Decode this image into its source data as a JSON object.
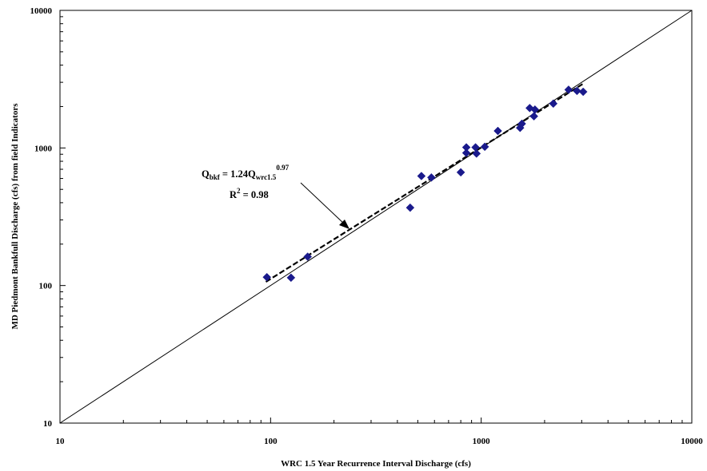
{
  "chart_data": {
    "type": "scatter",
    "title": "",
    "xlabel": "WRC 1.5 Year Recurrence Interval Discharge (cfs)",
    "ylabel": "MD Piedmont Bankfull Discharge (cfs) from field Indicators",
    "x_scale": "log",
    "y_scale": "log",
    "xlim": [
      10,
      10000
    ],
    "ylim": [
      10,
      10000
    ],
    "x_ticks": [
      "10",
      "100",
      "1000",
      "10000"
    ],
    "y_ticks": [
      "10",
      "100",
      "1000",
      "10000"
    ],
    "grid": false,
    "legend": "none",
    "marker_color": "#1a1a8c",
    "series": [
      {
        "marker": "diamond",
        "points": [
          [
            96,
            115
          ],
          [
            125,
            114
          ],
          [
            150,
            162
          ],
          [
            460,
            368
          ],
          [
            520,
            625
          ],
          [
            580,
            610
          ],
          [
            800,
            665
          ],
          [
            850,
            1010
          ],
          [
            850,
            920
          ],
          [
            940,
            1010
          ],
          [
            950,
            910
          ],
          [
            1040,
            1020
          ],
          [
            1200,
            1330
          ],
          [
            1530,
            1400
          ],
          [
            1560,
            1500
          ],
          [
            1700,
            1950
          ],
          [
            1780,
            1700
          ],
          [
            1800,
            1900
          ],
          [
            2200,
            2100
          ],
          [
            2600,
            2650
          ],
          [
            2850,
            2600
          ],
          [
            3050,
            2560
          ]
        ]
      }
    ],
    "lines": [
      {
        "type": "one-to-one",
        "x": [
          10,
          10000
        ],
        "y": [
          10,
          10000
        ]
      },
      {
        "type": "regression",
        "style": "dashed",
        "x": [
          95,
          3050
        ],
        "y": [
          106.4,
          2933
        ]
      }
    ],
    "annotation": {
      "q_main": "Q",
      "q_sub1": "bkf",
      "eq_mid": " = 1.24Q",
      "q_sub2": "wrc1.5",
      "exponent": "0.97",
      "r_main": "R",
      "r_sup": "2",
      "r_value": " = 0.98"
    }
  }
}
